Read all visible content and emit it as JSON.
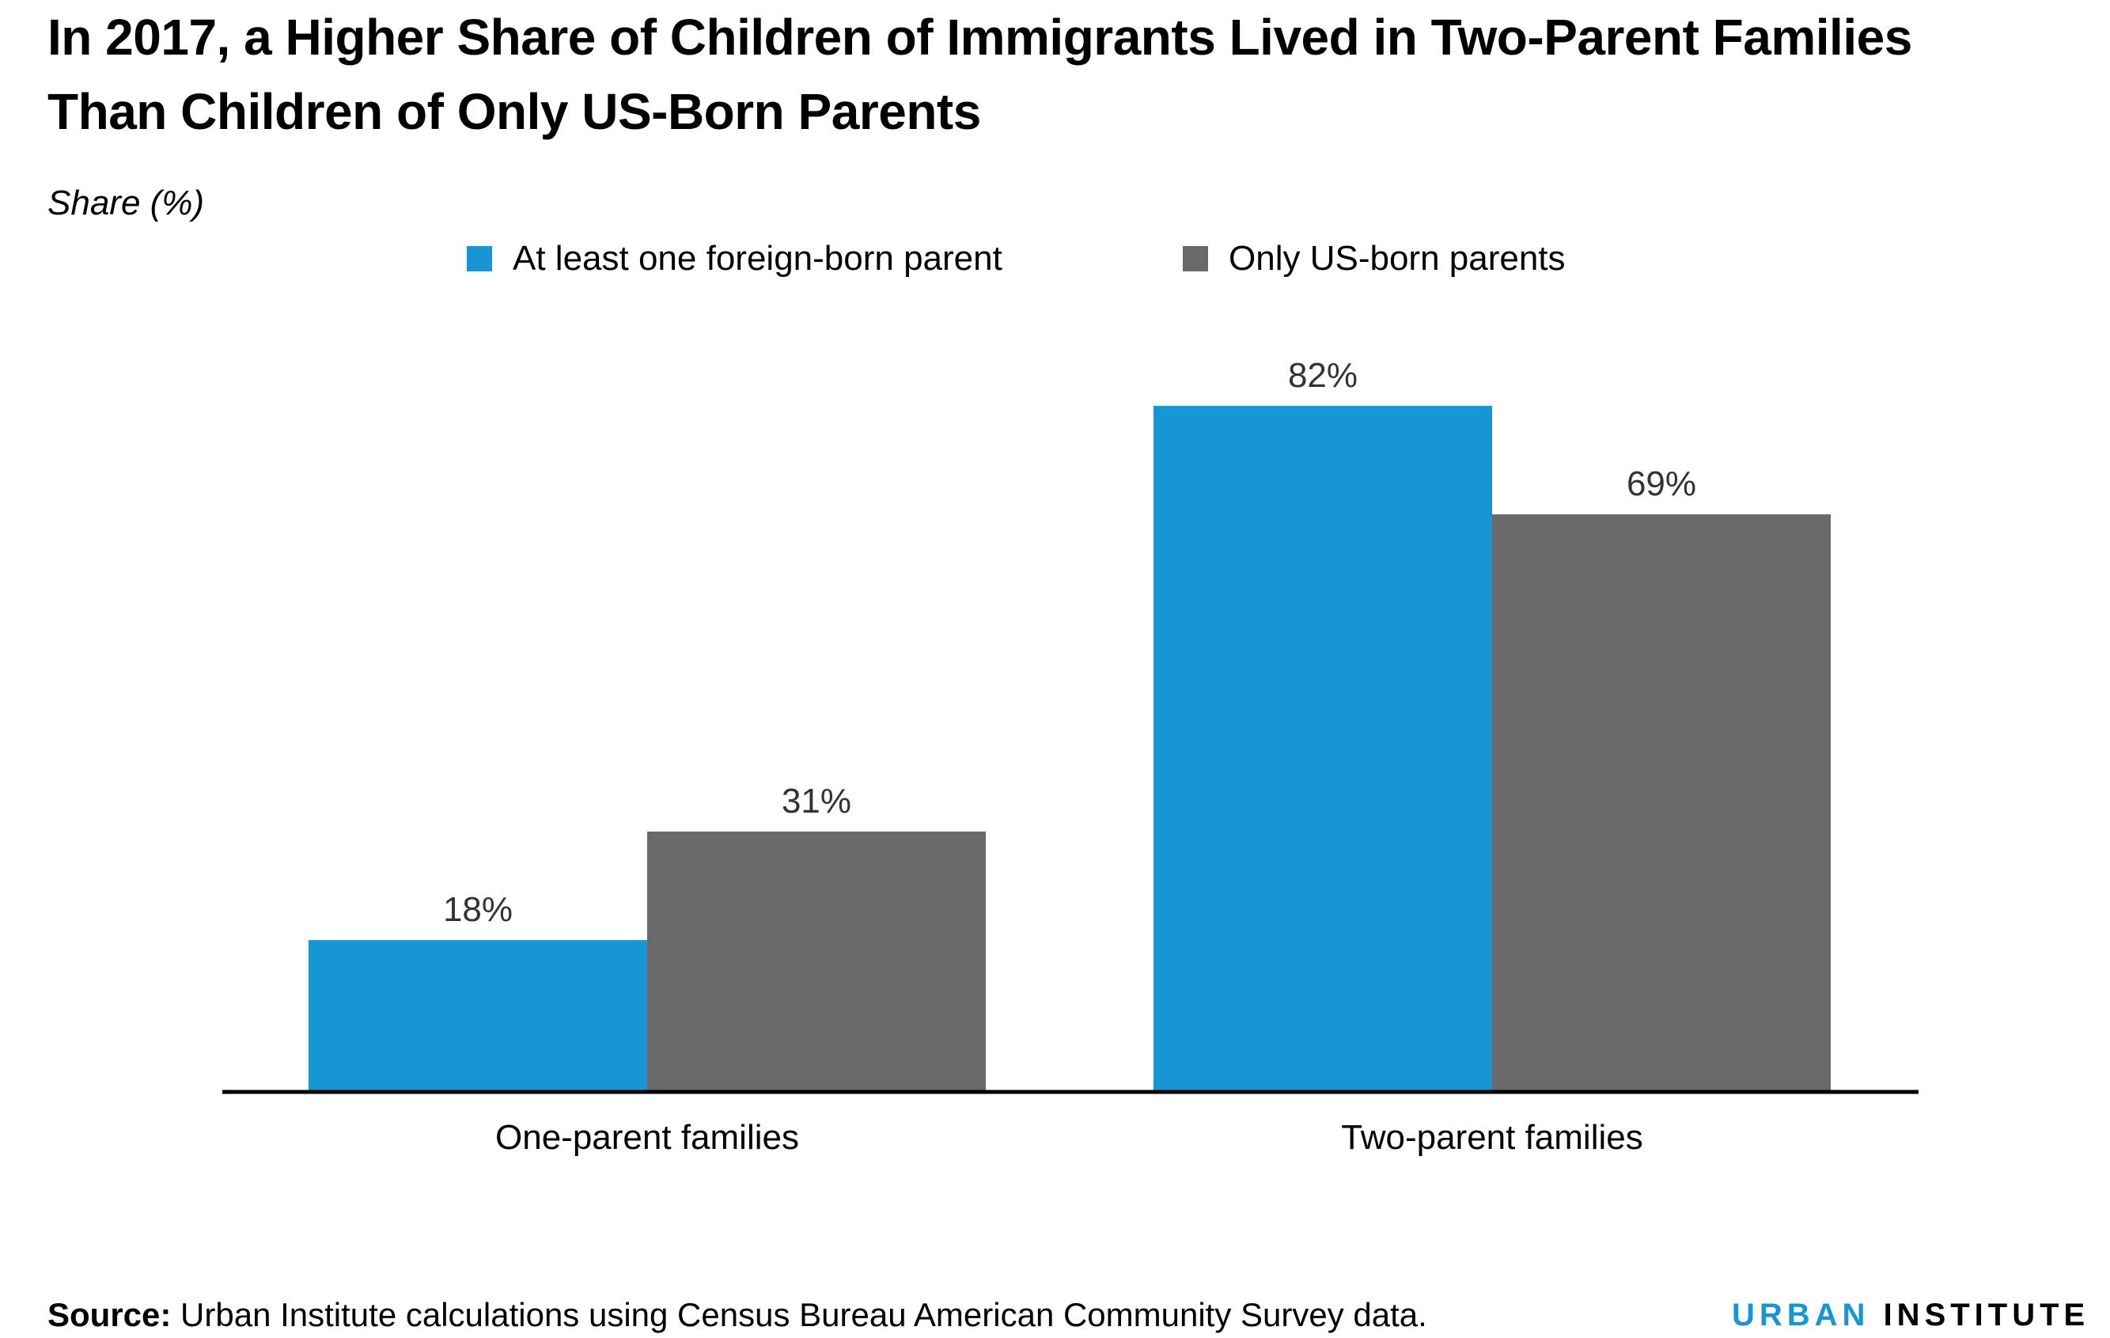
{
  "title": "In 2017, a Higher Share of Children of Immigrants Lived in Two-Parent Families Than Children of Only US-Born Parents",
  "source_label": "Source:",
  "source_text": " Urban Institute calculations using Census Bureau American Community Survey data.",
  "logo": {
    "part1": "URBAN",
    "part2": "INSTITUTE",
    "part1_color": "#1696d2",
    "part2_color": "#000000"
  },
  "chart_data": {
    "type": "bar",
    "title": "In 2017, a Higher Share of Children of Immigrants Lived in Two-Parent Families Than Children of Only US-Born Parents",
    "ylabel": "Share (%)",
    "xlabel": "",
    "categories": [
      "One-parent families",
      "Two-parent families"
    ],
    "series": [
      {
        "name": "At least one foreign-born parent",
        "values": [
          18,
          82
        ],
        "labels": [
          "18%",
          "82%"
        ],
        "color": "#1696d2"
      },
      {
        "name": "Only US-born parents",
        "values": [
          31,
          69
        ],
        "labels": [
          "31%",
          "69%"
        ],
        "color": "#696969"
      }
    ],
    "ylim": [
      0,
      100
    ],
    "grid": false,
    "legend_position": "top"
  }
}
